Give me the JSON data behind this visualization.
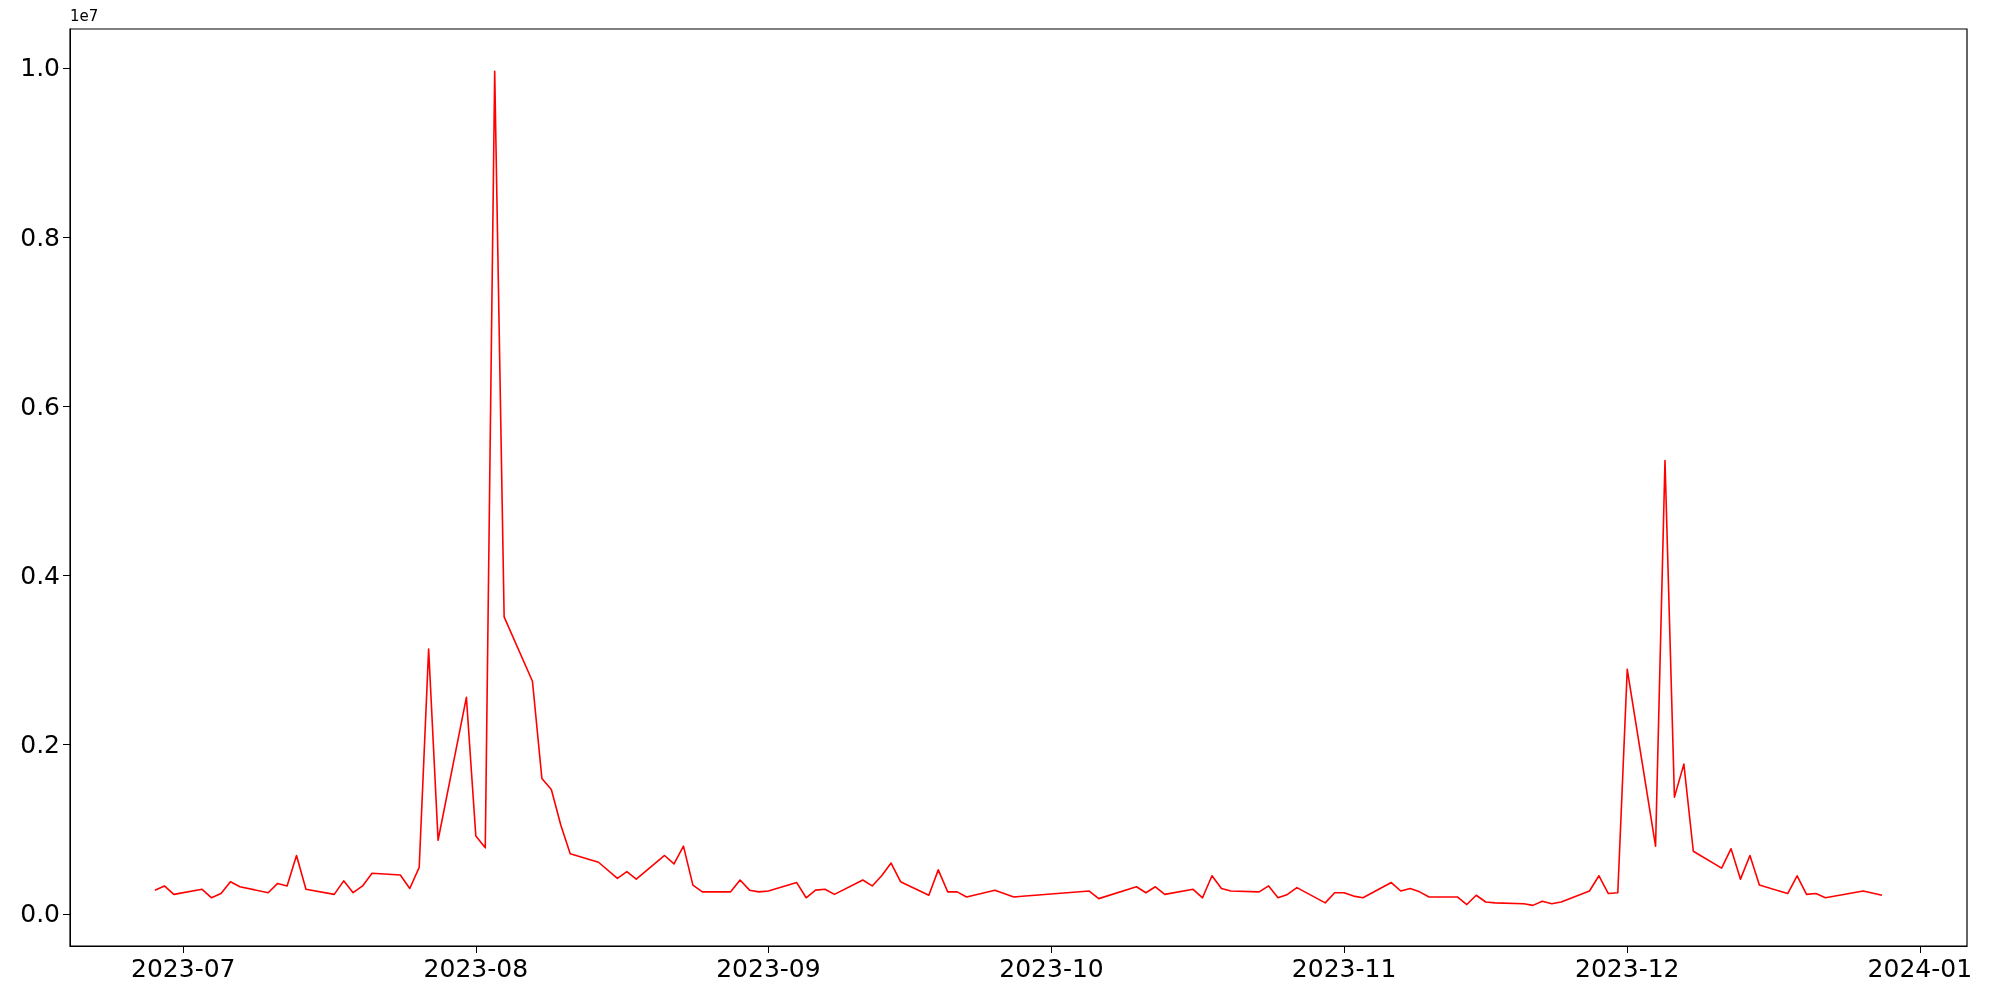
{
  "chart_data": {
    "type": "line",
    "annotations": [
      "1e7"
    ],
    "x": [
      "2023-06-28",
      "2023-06-29",
      "2023-06-30",
      "2023-07-03",
      "2023-07-04",
      "2023-07-05",
      "2023-07-06",
      "2023-07-07",
      "2023-07-10",
      "2023-07-11",
      "2023-07-12",
      "2023-07-13",
      "2023-07-14",
      "2023-07-17",
      "2023-07-18",
      "2023-07-19",
      "2023-07-20",
      "2023-07-21",
      "2023-07-24",
      "2023-07-25",
      "2023-07-26",
      "2023-07-27",
      "2023-07-28",
      "2023-07-31",
      "2023-08-01",
      "2023-08-02",
      "2023-08-03",
      "2023-08-04",
      "2023-08-07",
      "2023-08-08",
      "2023-08-09",
      "2023-08-10",
      "2023-08-11",
      "2023-08-14",
      "2023-08-16",
      "2023-08-17",
      "2023-08-18",
      "2023-08-21",
      "2023-08-22",
      "2023-08-23",
      "2023-08-24",
      "2023-08-25",
      "2023-08-28",
      "2023-08-29",
      "2023-08-30",
      "2023-08-31",
      "2023-09-01",
      "2023-09-04",
      "2023-09-05",
      "2023-09-06",
      "2023-09-07",
      "2023-09-08",
      "2023-09-11",
      "2023-09-12",
      "2023-09-13",
      "2023-09-14",
      "2023-09-15",
      "2023-09-18",
      "2023-09-19",
      "2023-09-20",
      "2023-09-21",
      "2023-09-22",
      "2023-09-25",
      "2023-09-27",
      "2023-10-05",
      "2023-10-06",
      "2023-10-10",
      "2023-10-11",
      "2023-10-12",
      "2023-10-13",
      "2023-10-16",
      "2023-10-17",
      "2023-10-18",
      "2023-10-19",
      "2023-10-20",
      "2023-10-23",
      "2023-10-24",
      "2023-10-25",
      "2023-10-26",
      "2023-10-27",
      "2023-10-30",
      "2023-10-31",
      "2023-11-01",
      "2023-11-02",
      "2023-11-03",
      "2023-11-06",
      "2023-11-07",
      "2023-11-08",
      "2023-11-09",
      "2023-11-10",
      "2023-11-13",
      "2023-11-14",
      "2023-11-15",
      "2023-11-16",
      "2023-11-17",
      "2023-11-20",
      "2023-11-21",
      "2023-11-22",
      "2023-11-23",
      "2023-11-24",
      "2023-11-27",
      "2023-11-28",
      "2023-11-29",
      "2023-11-30",
      "2023-12-01",
      "2023-12-04",
      "2023-12-05",
      "2023-12-06",
      "2023-12-07",
      "2023-12-08",
      "2023-12-11",
      "2023-12-12",
      "2023-12-13",
      "2023-12-14",
      "2023-12-15",
      "2023-12-18",
      "2023-12-19",
      "2023-12-20",
      "2023-12-21",
      "2023-12-22",
      "2023-12-26",
      "2023-12-28"
    ],
    "series": [
      {
        "color": "#ff0000",
        "values": [
          0.028,
          0.033,
          0.023,
          0.029,
          0.019,
          0.024,
          0.038,
          0.032,
          0.025,
          0.036,
          0.033,
          0.069,
          0.029,
          0.023,
          0.039,
          0.025,
          0.033,
          0.048,
          0.046,
          0.03,
          0.055,
          0.313,
          0.087,
          0.256,
          0.092,
          0.078,
          0.996,
          0.351,
          0.275,
          0.16,
          0.147,
          0.105,
          0.071,
          0.061,
          0.042,
          0.05,
          0.041,
          0.069,
          0.059,
          0.08,
          0.034,
          0.026,
          0.026,
          0.04,
          0.028,
          0.026,
          0.027,
          0.037,
          0.019,
          0.028,
          0.029,
          0.023,
          0.04,
          0.033,
          0.045,
          0.06,
          0.038,
          0.022,
          0.052,
          0.026,
          0.026,
          0.02,
          0.028,
          0.02,
          0.027,
          0.018,
          0.032,
          0.025,
          0.032,
          0.023,
          0.029,
          0.019,
          0.045,
          0.03,
          0.027,
          0.026,
          0.033,
          0.019,
          0.023,
          0.031,
          0.013,
          0.025,
          0.025,
          0.021,
          0.019,
          0.037,
          0.027,
          0.03,
          0.026,
          0.02,
          0.02,
          0.011,
          0.022,
          0.014,
          0.013,
          0.012,
          0.01,
          0.015,
          0.012,
          0.014,
          0.027,
          0.045,
          0.024,
          0.025,
          0.289,
          0.08,
          0.536,
          0.138,
          0.177,
          0.074,
          0.054,
          0.077,
          0.041,
          0.069,
          0.034,
          0.024,
          0.045,
          0.023,
          0.024,
          0.019,
          0.027,
          0.022
        ]
      }
    ],
    "xlim": [
      "2023-06-19",
      "2024-01-06"
    ],
    "xticks": [
      {
        "value": "2023-07-01",
        "label": "2023-07"
      },
      {
        "value": "2023-08-01",
        "label": "2023-08"
      },
      {
        "value": "2023-09-01",
        "label": "2023-09"
      },
      {
        "value": "2023-10-01",
        "label": "2023-10"
      },
      {
        "value": "2023-11-01",
        "label": "2023-11"
      },
      {
        "value": "2023-12-01",
        "label": "2023-12"
      },
      {
        "value": "2024-01-01",
        "label": "2024-01"
      }
    ],
    "ylim": [
      -0.038,
      1.046
    ],
    "yticks": [
      {
        "value": 0,
        "label": "0.0"
      },
      0.2,
      0.4,
      0.6,
      0.8,
      {
        "value": 1,
        "label": "1.0"
      }
    ],
    "grid": false,
    "marker": "none",
    "line_style": "solid"
  }
}
